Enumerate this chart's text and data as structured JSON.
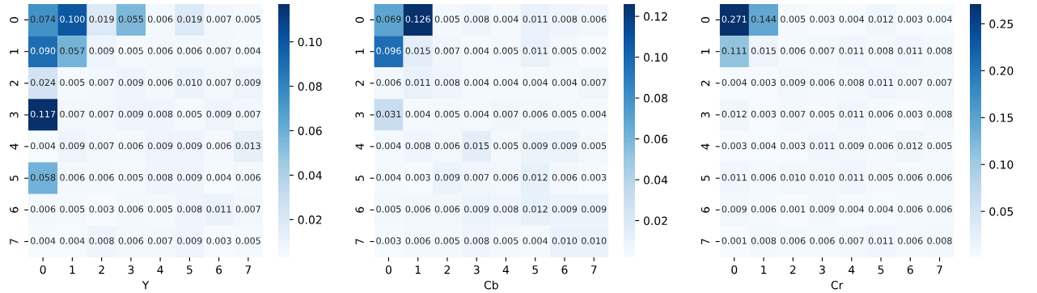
{
  "chart_data": [
    {
      "type": "heatmap",
      "xlabel": "Y",
      "categories": [
        "0",
        "1",
        "2",
        "3",
        "4",
        "5",
        "6",
        "7"
      ],
      "y_categories": [
        "0",
        "1",
        "2",
        "3",
        "4",
        "5",
        "6",
        "7"
      ],
      "cells": [
        [
          0.074,
          0.1,
          0.019,
          0.055,
          0.006,
          0.019,
          0.007,
          0.005
        ],
        [
          0.09,
          0.057,
          0.009,
          0.005,
          0.006,
          0.006,
          0.007,
          0.004
        ],
        [
          0.024,
          0.005,
          0.007,
          0.009,
          0.006,
          0.01,
          0.007,
          0.009
        ],
        [
          0.117,
          0.007,
          0.007,
          0.009,
          0.008,
          0.005,
          0.009,
          0.007
        ],
        [
          0.004,
          0.009,
          0.007,
          0.006,
          0.009,
          0.009,
          0.006,
          0.013
        ],
        [
          0.058,
          0.006,
          0.006,
          0.005,
          0.008,
          0.009,
          0.004,
          0.006
        ],
        [
          0.006,
          0.005,
          0.003,
          0.006,
          0.005,
          0.008,
          0.011,
          0.007
        ],
        [
          0.004,
          0.004,
          0.008,
          0.006,
          0.007,
          0.009,
          0.003,
          0.005
        ]
      ],
      "cell_labels": [
        [
          "0.074",
          "0.100",
          "0.019",
          "0.055",
          "0.006",
          "0.019",
          "0.007",
          "0.005"
        ],
        [
          "0.090",
          "0.057",
          "0.009",
          "0.005",
          "0.006",
          "0.006",
          "0.007",
          "0.004"
        ],
        [
          "0.024",
          "0.005",
          "0.007",
          "0.009",
          "0.006",
          "0.010",
          "0.007",
          "0.009"
        ],
        [
          "0.117",
          "0.007",
          "0.007",
          "0.009",
          "0.008",
          "0.005",
          "0.009",
          "0.007"
        ],
        [
          "0.004",
          "0.009",
          "0.007",
          "0.006",
          "0.009",
          "0.009",
          "0.006",
          "0.013"
        ],
        [
          "0.058",
          "0.006",
          "0.006",
          "0.005",
          "0.008",
          "0.009",
          "0.004",
          "0.006"
        ],
        [
          "0.006",
          "0.005",
          "0.003",
          "0.006",
          "0.005",
          "0.008",
          "0.011",
          "0.007"
        ],
        [
          "0.004",
          "0.004",
          "0.008",
          "0.006",
          "0.007",
          "0.009",
          "0.003",
          "0.005"
        ]
      ],
      "clim": [
        0.003,
        0.117
      ],
      "cticks": [
        {
          "value": 0.02,
          "label": "0.02"
        },
        {
          "value": 0.04,
          "label": "0.04"
        },
        {
          "value": 0.06,
          "label": "0.06"
        },
        {
          "value": 0.08,
          "label": "0.08"
        },
        {
          "value": 0.1,
          "label": "0.10"
        }
      ]
    },
    {
      "type": "heatmap",
      "xlabel": "Cb",
      "categories": [
        "0",
        "1",
        "2",
        "3",
        "4",
        "5",
        "6",
        "7"
      ],
      "y_categories": [
        "0",
        "1",
        "2",
        "3",
        "4",
        "5",
        "6",
        "7"
      ],
      "cells": [
        [
          0.069,
          0.126,
          0.005,
          0.008,
          0.004,
          0.011,
          0.008,
          0.006
        ],
        [
          0.096,
          0.015,
          0.007,
          0.004,
          0.005,
          0.011,
          0.005,
          0.002
        ],
        [
          0.006,
          0.011,
          0.008,
          0.004,
          0.004,
          0.004,
          0.004,
          0.007
        ],
        [
          0.031,
          0.004,
          0.005,
          0.004,
          0.007,
          0.006,
          0.005,
          0.004
        ],
        [
          0.004,
          0.008,
          0.006,
          0.015,
          0.005,
          0.009,
          0.009,
          0.005
        ],
        [
          0.004,
          0.003,
          0.009,
          0.007,
          0.006,
          0.012,
          0.006,
          0.003
        ],
        [
          0.005,
          0.006,
          0.006,
          0.009,
          0.008,
          0.012,
          0.009,
          0.009
        ],
        [
          0.003,
          0.006,
          0.005,
          0.008,
          0.005,
          0.004,
          0.01,
          0.01
        ]
      ],
      "cell_labels": [
        [
          "0.069",
          "0.126",
          "0.005",
          "0.008",
          "0.004",
          "0.011",
          "0.008",
          "0.006"
        ],
        [
          "0.096",
          "0.015",
          "0.007",
          "0.004",
          "0.005",
          "0.011",
          "0.005",
          "0.002"
        ],
        [
          "0.006",
          "0.011",
          "0.008",
          "0.004",
          "0.004",
          "0.004",
          "0.004",
          "0.007"
        ],
        [
          "0.031",
          "0.004",
          "0.005",
          "0.004",
          "0.007",
          "0.006",
          "0.005",
          "0.004"
        ],
        [
          "0.004",
          "0.008",
          "0.006",
          "0.015",
          "0.005",
          "0.009",
          "0.009",
          "0.005"
        ],
        [
          "0.004",
          "0.003",
          "0.009",
          "0.007",
          "0.006",
          "0.012",
          "0.006",
          "0.003"
        ],
        [
          "0.005",
          "0.006",
          "0.006",
          "0.009",
          "0.008",
          "0.012",
          "0.009",
          "0.009"
        ],
        [
          "0.003",
          "0.006",
          "0.005",
          "0.008",
          "0.005",
          "0.004",
          "0.010",
          "0.010"
        ]
      ],
      "clim": [
        0.002,
        0.126
      ],
      "cticks": [
        {
          "value": 0.02,
          "label": "0.02"
        },
        {
          "value": 0.04,
          "label": "0.04"
        },
        {
          "value": 0.06,
          "label": "0.06"
        },
        {
          "value": 0.08,
          "label": "0.08"
        },
        {
          "value": 0.1,
          "label": "0.10"
        },
        {
          "value": 0.12,
          "label": "0.12"
        }
      ]
    },
    {
      "type": "heatmap",
      "xlabel": "Cr",
      "categories": [
        "0",
        "1",
        "2",
        "3",
        "4",
        "5",
        "6",
        "7"
      ],
      "y_categories": [
        "0",
        "1",
        "2",
        "3",
        "4",
        "5",
        "6",
        "7"
      ],
      "cells": [
        [
          0.271,
          0.144,
          0.005,
          0.003,
          0.004,
          0.012,
          0.003,
          0.004
        ],
        [
          0.111,
          0.015,
          0.006,
          0.007,
          0.011,
          0.008,
          0.011,
          0.008
        ],
        [
          0.004,
          0.003,
          0.009,
          0.006,
          0.008,
          0.011,
          0.007,
          0.007
        ],
        [
          0.012,
          0.003,
          0.007,
          0.005,
          0.011,
          0.006,
          0.003,
          0.008
        ],
        [
          0.003,
          0.004,
          0.003,
          0.011,
          0.009,
          0.006,
          0.012,
          0.005
        ],
        [
          0.011,
          0.006,
          0.01,
          0.01,
          0.011,
          0.005,
          0.006,
          0.006
        ],
        [
          0.009,
          0.006,
          0.001,
          0.009,
          0.004,
          0.004,
          0.006,
          0.006
        ],
        [
          0.001,
          0.008,
          0.006,
          0.006,
          0.007,
          0.011,
          0.006,
          0.008
        ]
      ],
      "cell_labels": [
        [
          "0.271",
          "0.144",
          "0.005",
          "0.003",
          "0.004",
          "0.012",
          "0.003",
          "0.004"
        ],
        [
          "0.111",
          "0.015",
          "0.006",
          "0.007",
          "0.011",
          "0.008",
          "0.011",
          "0.008"
        ],
        [
          "0.004",
          "0.003",
          "0.009",
          "0.006",
          "0.008",
          "0.011",
          "0.007",
          "0.007"
        ],
        [
          "0.012",
          "0.003",
          "0.007",
          "0.005",
          "0.011",
          "0.006",
          "0.003",
          "0.008"
        ],
        [
          "0.003",
          "0.004",
          "0.003",
          "0.011",
          "0.009",
          "0.006",
          "0.012",
          "0.005"
        ],
        [
          "0.011",
          "0.006",
          "0.010",
          "0.010",
          "0.011",
          "0.005",
          "0.006",
          "0.006"
        ],
        [
          "0.009",
          "0.006",
          "0.001",
          "0.009",
          "0.004",
          "0.004",
          "0.006",
          "0.006"
        ],
        [
          "0.001",
          "0.008",
          "0.006",
          "0.006",
          "0.007",
          "0.011",
          "0.006",
          "0.008"
        ]
      ],
      "clim": [
        0.001,
        0.271
      ],
      "cticks": [
        {
          "value": 0.05,
          "label": "0.05"
        },
        {
          "value": 0.1,
          "label": "0.10"
        },
        {
          "value": 0.15,
          "label": "0.15"
        },
        {
          "value": 0.2,
          "label": "0.20"
        },
        {
          "value": 0.25,
          "label": "0.25"
        }
      ]
    }
  ]
}
